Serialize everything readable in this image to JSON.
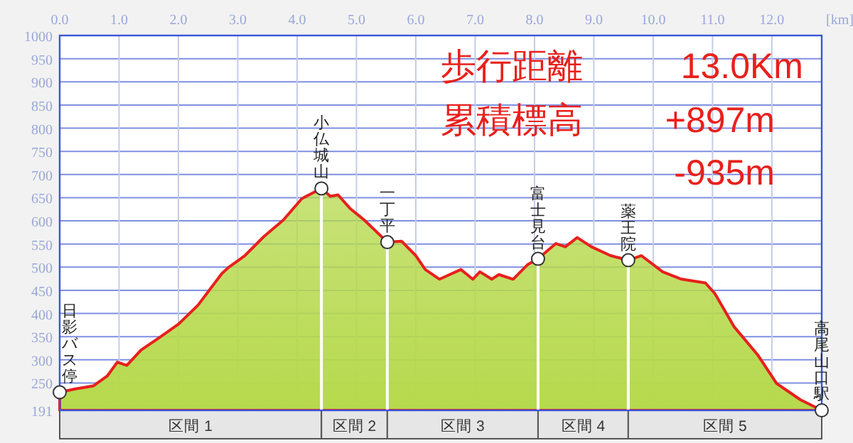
{
  "chart_data": {
    "type": "area",
    "xlabel": "[km]",
    "grid": true,
    "xlim": [
      0,
      12.84
    ],
    "ylim": [
      191,
      1000
    ],
    "xticks": [
      {
        "value": 0,
        "label": "0.0"
      },
      {
        "value": 1,
        "label": "1.0"
      },
      {
        "value": 2,
        "label": "2.0"
      },
      {
        "value": 3,
        "label": "3.0"
      },
      {
        "value": 4,
        "label": "4.0"
      },
      {
        "value": 5,
        "label": "5.0"
      },
      {
        "value": 6,
        "label": "6.0"
      },
      {
        "value": 7,
        "label": "7.0"
      },
      {
        "value": 8,
        "label": "8.0"
      },
      {
        "value": 9,
        "label": "9.0"
      },
      {
        "value": 10,
        "label": "10.0"
      },
      {
        "value": 11,
        "label": "11.0"
      },
      {
        "value": 12,
        "label": "12.0"
      }
    ],
    "yticks": [
      191,
      250,
      300,
      350,
      400,
      450,
      500,
      550,
      600,
      650,
      700,
      750,
      800,
      850,
      900,
      950,
      1000
    ],
    "series": [
      {
        "color": "#e8201c",
        "x": [
          0,
          0.25,
          0.57,
          0.8,
          0.97,
          1.13,
          1.37,
          1.69,
          2.0,
          2.33,
          2.73,
          2.85,
          3.12,
          3.44,
          3.77,
          4.08,
          4.41,
          4.56,
          4.69,
          4.89,
          5.13,
          5.52,
          5.76,
          6.0,
          6.16,
          6.4,
          6.76,
          6.96,
          7.08,
          7.28,
          7.4,
          7.64,
          7.88,
          8.06,
          8.36,
          8.52,
          8.72,
          8.96,
          9.28,
          9.58,
          9.8,
          10.16,
          10.48,
          10.88,
          11.04,
          11.36,
          11.76,
          12.08,
          12.48,
          12.84
        ],
        "values": [
          230,
          237,
          244,
          265,
          295,
          288,
          321,
          349,
          377,
          418,
          486,
          500,
          525,
          566,
          602,
          648,
          670,
          653,
          656,
          627,
          602,
          554,
          556,
          525,
          495,
          474,
          495,
          474,
          490,
          474,
          484,
          474,
          505,
          518,
          551,
          544,
          564,
          544,
          525,
          515,
          525,
          490,
          474,
          466,
          443,
          372,
          311,
          249,
          214,
          191
        ]
      }
    ],
    "ref_lines": [
      {
        "axis": "x",
        "value": 4.41,
        "color": "#ffffff"
      },
      {
        "axis": "x",
        "value": 5.52,
        "color": "#ffffff"
      },
      {
        "axis": "x",
        "value": 8.06,
        "color": "#ffffff"
      },
      {
        "axis": "x",
        "value": 9.58,
        "color": "#ffffff"
      }
    ],
    "annotations": [
      {
        "text": "日影バス停",
        "x": 0,
        "y": 230
      },
      {
        "text": "小仏城山",
        "x": 4.41,
        "y": 670
      },
      {
        "text": "一丁平",
        "x": 5.52,
        "y": 554
      },
      {
        "text": "富士見台",
        "x": 8.06,
        "y": 518
      },
      {
        "text": "薬王院",
        "x": 9.58,
        "y": 515
      },
      {
        "text": "高尾山口駅",
        "x": 12.84,
        "y": 191
      },
      "歩行距離",
      "13.0Km",
      "累積標高",
      "+897m",
      "-935m",
      "区間 1",
      "区間 2",
      "区間 3",
      "区間 4",
      "区間 5"
    ]
  }
}
